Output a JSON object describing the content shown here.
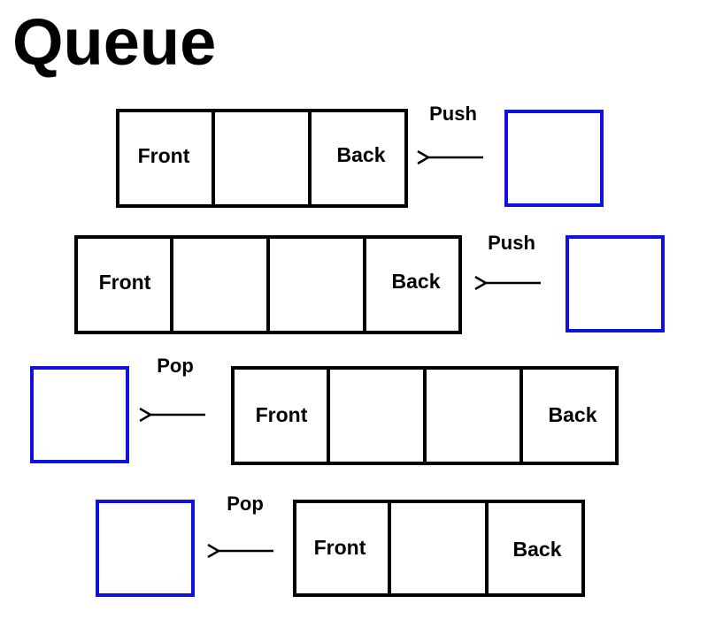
{
  "title": "Queue",
  "rows": [
    {
      "op": "Push",
      "front_label": "Front",
      "back_label": "Back"
    },
    {
      "op": "Push",
      "front_label": "Front",
      "back_label": "Back"
    },
    {
      "op": "Pop",
      "front_label": "Front",
      "back_label": "Back"
    },
    {
      "op": "Pop",
      "front_label": "Front",
      "back_label": "Back"
    }
  ],
  "colors": {
    "queue_border": "#000000",
    "element_border": "#1010e0"
  }
}
